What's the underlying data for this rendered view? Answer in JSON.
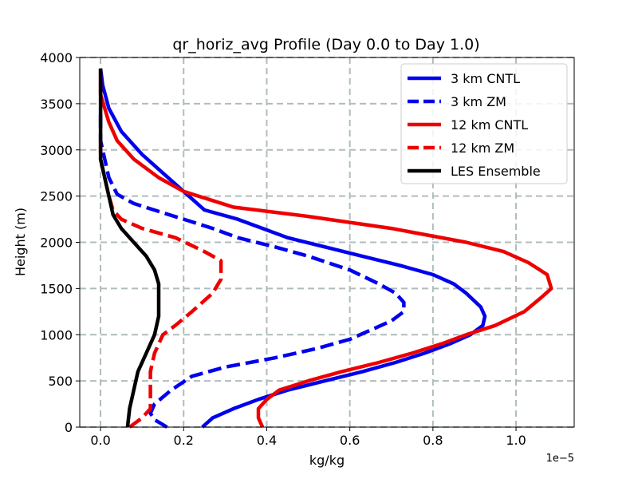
{
  "chart_data": {
    "type": "line",
    "title": "qr_horiz_avg Profile (Day 0.0 to Day 1.0)",
    "xlabel": "kg/kg",
    "ylabel": "Height (m)",
    "x_offset_label": "1e−5",
    "xlim": [
      -0.05,
      1.14
    ],
    "ylim": [
      0,
      4000
    ],
    "xticks": [
      0.0,
      0.2,
      0.4,
      0.6,
      0.8,
      1.0
    ],
    "xtick_labels": [
      "0.0",
      "0.2",
      "0.4",
      "0.6",
      "0.8",
      "1.0"
    ],
    "yticks": [
      0,
      500,
      1000,
      1500,
      2000,
      2500,
      3000,
      3500,
      4000
    ],
    "ytick_labels": [
      "0",
      "500",
      "1000",
      "1500",
      "2000",
      "2500",
      "3000",
      "3500",
      "4000"
    ],
    "grid": true,
    "legend_position": "top-right",
    "series": [
      {
        "name": "3 km CNTL",
        "color": "#0000ee",
        "style": "solid",
        "points": [
          [
            0.245,
            0
          ],
          [
            0.27,
            100
          ],
          [
            0.32,
            200
          ],
          [
            0.38,
            300
          ],
          [
            0.45,
            400
          ],
          [
            0.54,
            500
          ],
          [
            0.63,
            600
          ],
          [
            0.71,
            700
          ],
          [
            0.78,
            800
          ],
          [
            0.84,
            900
          ],
          [
            0.89,
            1000
          ],
          [
            0.92,
            1100
          ],
          [
            0.925,
            1200
          ],
          [
            0.915,
            1300
          ],
          [
            0.88,
            1450
          ],
          [
            0.85,
            1550
          ],
          [
            0.8,
            1650
          ],
          [
            0.72,
            1750
          ],
          [
            0.63,
            1850
          ],
          [
            0.54,
            1950
          ],
          [
            0.45,
            2050
          ],
          [
            0.39,
            2150
          ],
          [
            0.33,
            2250
          ],
          [
            0.25,
            2350
          ],
          [
            0.2,
            2550
          ],
          [
            0.15,
            2750
          ],
          [
            0.1,
            2950
          ],
          [
            0.05,
            3200
          ],
          [
            0.02,
            3450
          ],
          [
            0.005,
            3700
          ],
          [
            0.0,
            3880
          ]
        ]
      },
      {
        "name": "3 km ZM",
        "color": "#0000ee",
        "style": "dashed",
        "points": [
          [
            0.16,
            0
          ],
          [
            0.13,
            80
          ],
          [
            0.12,
            150
          ],
          [
            0.13,
            250
          ],
          [
            0.17,
            400
          ],
          [
            0.22,
            550
          ],
          [
            0.3,
            650
          ],
          [
            0.42,
            750
          ],
          [
            0.52,
            850
          ],
          [
            0.6,
            950
          ],
          [
            0.65,
            1050
          ],
          [
            0.7,
            1150
          ],
          [
            0.73,
            1250
          ],
          [
            0.73,
            1350
          ],
          [
            0.71,
            1450
          ],
          [
            0.67,
            1550
          ],
          [
            0.6,
            1700
          ],
          [
            0.5,
            1850
          ],
          [
            0.42,
            1950
          ],
          [
            0.33,
            2050
          ],
          [
            0.27,
            2150
          ],
          [
            0.2,
            2250
          ],
          [
            0.15,
            2320
          ],
          [
            0.08,
            2420
          ],
          [
            0.04,
            2520
          ],
          [
            0.02,
            2700
          ],
          [
            0.01,
            2900
          ],
          [
            0.0,
            3100
          ],
          [
            0.0,
            3400
          ]
        ]
      },
      {
        "name": "12 km CNTL",
        "color": "#ee0000",
        "style": "solid",
        "points": [
          [
            0.39,
            0
          ],
          [
            0.38,
            100
          ],
          [
            0.38,
            200
          ],
          [
            0.4,
            300
          ],
          [
            0.43,
            400
          ],
          [
            0.5,
            500
          ],
          [
            0.58,
            600
          ],
          [
            0.67,
            700
          ],
          [
            0.75,
            800
          ],
          [
            0.82,
            900
          ],
          [
            0.88,
            1000
          ],
          [
            0.95,
            1100
          ],
          [
            1.02,
            1250
          ],
          [
            1.06,
            1400
          ],
          [
            1.085,
            1500
          ],
          [
            1.075,
            1650
          ],
          [
            1.03,
            1780
          ],
          [
            0.97,
            1900
          ],
          [
            0.88,
            2000
          ],
          [
            0.7,
            2150
          ],
          [
            0.5,
            2280
          ],
          [
            0.32,
            2380
          ],
          [
            0.2,
            2550
          ],
          [
            0.14,
            2700
          ],
          [
            0.08,
            2900
          ],
          [
            0.04,
            3100
          ],
          [
            0.02,
            3300
          ],
          [
            0.0,
            3600
          ],
          [
            0.0,
            3880
          ]
        ]
      },
      {
        "name": "12 km ZM",
        "color": "#ee0000",
        "style": "dashed",
        "points": [
          [
            0.07,
            0
          ],
          [
            0.1,
            100
          ],
          [
            0.12,
            200
          ],
          [
            0.12,
            400
          ],
          [
            0.12,
            600
          ],
          [
            0.13,
            800
          ],
          [
            0.14,
            900
          ],
          [
            0.15,
            1000
          ],
          [
            0.18,
            1100
          ],
          [
            0.22,
            1250
          ],
          [
            0.27,
            1450
          ],
          [
            0.29,
            1600
          ],
          [
            0.29,
            1800
          ],
          [
            0.25,
            1900
          ],
          [
            0.18,
            2050
          ],
          [
            0.1,
            2150
          ],
          [
            0.05,
            2250
          ],
          [
            0.03,
            2350
          ],
          [
            0.02,
            2500
          ],
          [
            0.01,
            2700
          ],
          [
            0.0,
            2900
          ],
          [
            0.0,
            3100
          ]
        ]
      },
      {
        "name": "LES Ensemble",
        "color": "#000000",
        "style": "solid",
        "points": [
          [
            0.065,
            0
          ],
          [
            0.07,
            200
          ],
          [
            0.08,
            400
          ],
          [
            0.09,
            600
          ],
          [
            0.11,
            800
          ],
          [
            0.13,
            1000
          ],
          [
            0.14,
            1200
          ],
          [
            0.14,
            1400
          ],
          [
            0.14,
            1550
          ],
          [
            0.13,
            1700
          ],
          [
            0.11,
            1850
          ],
          [
            0.08,
            2000
          ],
          [
            0.05,
            2150
          ],
          [
            0.03,
            2300
          ],
          [
            0.02,
            2500
          ],
          [
            0.01,
            2700
          ],
          [
            0.0,
            2900
          ],
          [
            0.0,
            3200
          ],
          [
            0.0,
            3500
          ],
          [
            0.0,
            3880
          ]
        ]
      }
    ]
  }
}
